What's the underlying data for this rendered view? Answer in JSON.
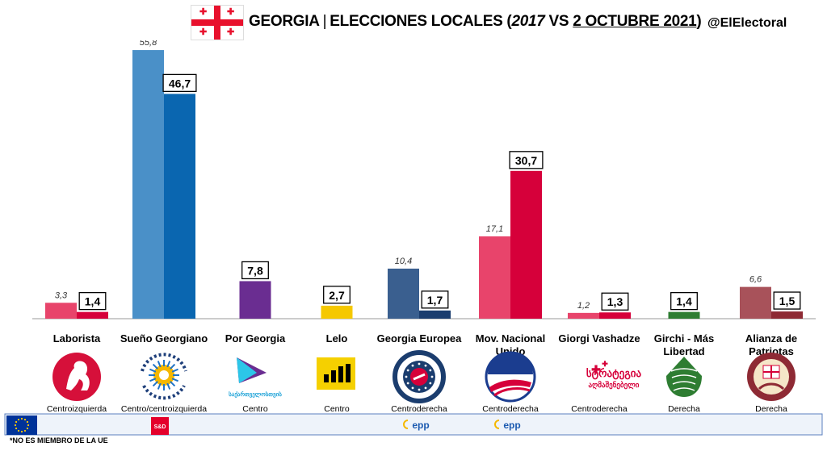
{
  "header": {
    "country": "GEORGIA",
    "title_part1": "ELECCIONES LOCALES (",
    "year_prev": "2017",
    "vs": " VS ",
    "date_current": "2 OCTUBRE 2021",
    "close": ")",
    "handle": "@ElElectoral"
  },
  "chart_data": {
    "type": "bar",
    "title": "GEORGIA | ELECCIONES LOCALES (2017 VS 2 OCTUBRE 2021)",
    "categories": [
      "Laborista",
      "Sueño Georgiano",
      "Por Georgia",
      "Lelo",
      "Georgia Europea",
      "Mov. Nacional Unido",
      "Giorgi Vashadze",
      "Girchi - Más Libertad",
      "Alianza de Patriotas"
    ],
    "category_lines": [
      [
        "Laborista"
      ],
      [
        "Sueño Georgiano"
      ],
      [
        "Por Georgia"
      ],
      [
        "Lelo"
      ],
      [
        "Georgia Europea"
      ],
      [
        "Mov. Nacional",
        "Unido"
      ],
      [
        "Giorgi Vashadze"
      ],
      [
        "Girchi - Más",
        "Libertad"
      ],
      [
        "Alianza de",
        "Patriotas"
      ]
    ],
    "series": [
      {
        "name": "2017",
        "values": [
          3.3,
          55.8,
          null,
          null,
          10.4,
          17.1,
          1.2,
          null,
          6.6
        ],
        "labels": [
          "3,3",
          "55,8",
          "",
          "",
          "10,4",
          "17,1",
          "1,2",
          "",
          "6,6"
        ]
      },
      {
        "name": "2 OCTUBRE 2021",
        "values": [
          1.4,
          46.7,
          7.8,
          2.7,
          1.7,
          30.7,
          1.3,
          1.4,
          1.5
        ],
        "labels": [
          "1,4",
          "46,7",
          "7,8",
          "2,7",
          "1,7",
          "30,7",
          "1,3",
          "1,4",
          "1,5"
        ]
      }
    ],
    "colors_prev": [
      "#e8446b",
      "#4a90c8",
      "#7a3fa0",
      "#f5d000",
      "#3a5f8f",
      "#e8446b",
      "#e8446b",
      "#3a8a3a",
      "#a8525a"
    ],
    "colors_curr": [
      "#d6003a",
      "#0a66b0",
      "#6a2d91",
      "#f5c800",
      "#1b3d6e",
      "#d6003a",
      "#d6003a",
      "#2e7d32",
      "#8e2a34"
    ],
    "ideology": [
      "Centroizquierda",
      "Centro/centroizquierda",
      "Centro",
      "Centro",
      "Centroderecha",
      "Centroderecha",
      "Centroderecha",
      "Derecha",
      "Derecha"
    ],
    "logo_text": {
      "por_georgia": "საქართველოსთვის",
      "strategia": [
        "სტრატეგია",
        "აღმაშენებელი"
      ]
    },
    "ylim": [
      0,
      60
    ],
    "grid": false,
    "legend": "none"
  },
  "eu_groups": {
    "sd": "S&D",
    "epp": "epp"
  },
  "footnote": "*NO ES MIEMBRO DE LA UE"
}
